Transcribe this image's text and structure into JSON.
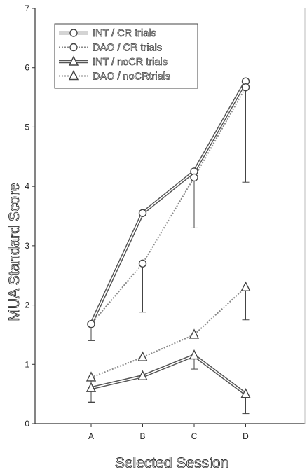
{
  "chart_data": {
    "type": "line",
    "xlabel": "Selected Session",
    "ylabel": "MUA Standard Score",
    "categories": [
      "A",
      "B",
      "C",
      "D"
    ],
    "ylim": [
      0,
      7
    ],
    "yticks": [
      0,
      1,
      2,
      3,
      4,
      5,
      6,
      7
    ],
    "grid": false,
    "legend_position": "top-left",
    "series": [
      {
        "name": "INT / CR trials",
        "marker": "circle",
        "style": "double-solid",
        "color": "#555555",
        "values": [
          1.68,
          3.55,
          4.25,
          5.77
        ],
        "error": [
          0,
          0,
          0,
          0
        ]
      },
      {
        "name": "DAO / CR trials",
        "marker": "circle",
        "style": "dotted",
        "color": "#8a8a8a",
        "values": [
          1.68,
          2.7,
          4.15,
          5.67
        ],
        "error": [
          0.28,
          0.82,
          0.85,
          1.6
        ]
      },
      {
        "name": "INT / noCR trials",
        "marker": "triangle",
        "style": "double-solid",
        "color": "#555555",
        "values": [
          0.6,
          0.8,
          1.15,
          0.5
        ],
        "error": [
          0.22,
          0,
          0.23,
          0.33
        ]
      },
      {
        "name": "DAO / noCRtrials",
        "marker": "triangle",
        "style": "dotted",
        "color": "#8a8a8a",
        "values": [
          0.78,
          1.12,
          1.5,
          2.3
        ],
        "error": [
          0.42,
          0,
          0,
          0.55
        ]
      }
    ]
  }
}
